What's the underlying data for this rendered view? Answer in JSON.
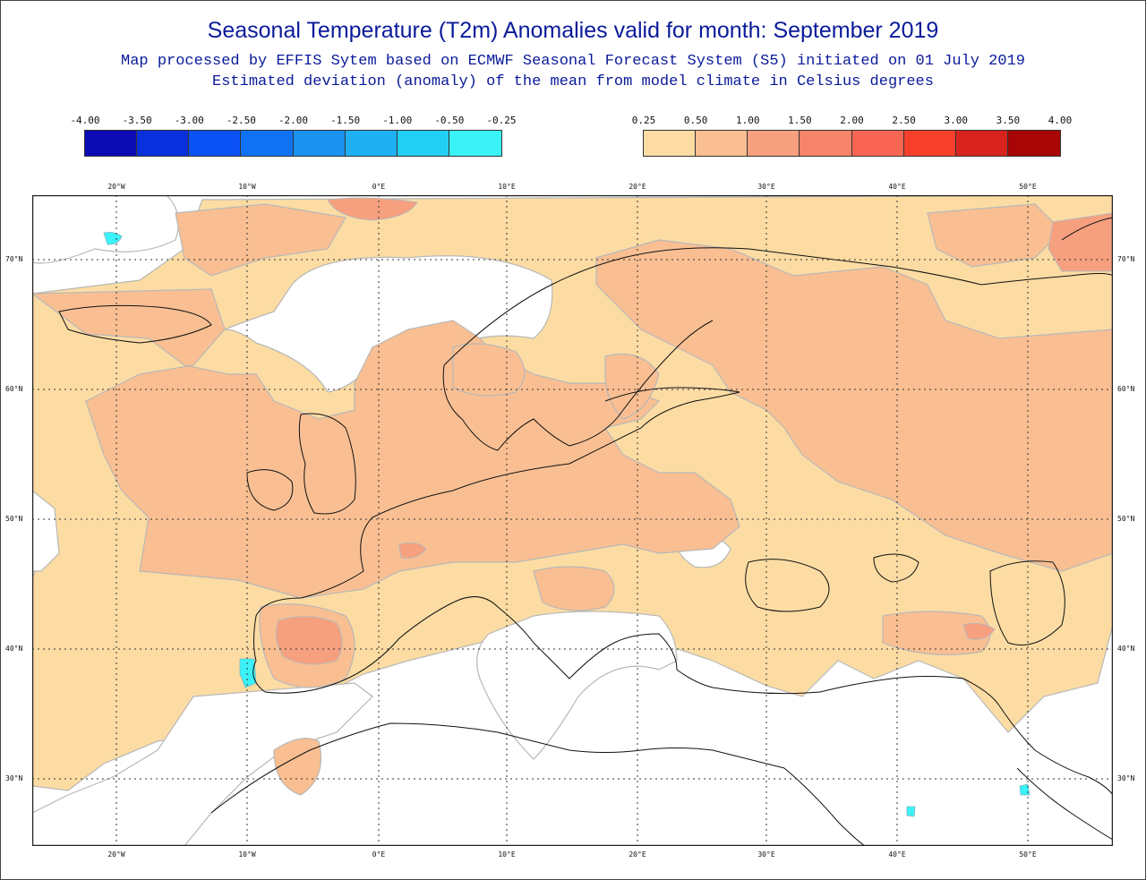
{
  "title": "Seasonal Temperature (T2m) Anomalies valid for month: September 2019",
  "subtitle1": "Map processed by EFFIS Sytem based on ECMWF Seasonal Forecast System (S5) initiated on 01 July 2019",
  "subtitle2": "Estimated deviation (anomaly) of the mean from model climate in Celsius degrees",
  "legend_negative": {
    "labels": [
      "-4.00",
      "-3.50",
      "-3.00",
      "-2.50",
      "-2.00",
      "-1.50",
      "-1.00",
      "-0.50",
      "-0.25"
    ],
    "colors": [
      "#0c0ab3",
      "#0a2fdc",
      "#0a52f5",
      "#0f72f5",
      "#1c92f0",
      "#1eb0f2",
      "#22cff4",
      "#3af2f8"
    ]
  },
  "legend_positive": {
    "labels": [
      "0.25",
      "0.50",
      "1.00",
      "1.50",
      "2.00",
      "2.50",
      "3.00",
      "3.50",
      "4.00"
    ],
    "colors": [
      "#fcdca3",
      "#f9bf92",
      "#f6a07f",
      "#f6846b",
      "#f86552",
      "#f7402c",
      "#d8221e",
      "#a80606"
    ]
  },
  "map": {
    "lon_labels": [
      "20°W",
      "10°W",
      "0°E",
      "10°E",
      "20°E",
      "30°E",
      "40°E",
      "50°E"
    ],
    "lat_labels": [
      "70°N",
      "60°N",
      "50°N",
      "40°N",
      "30°N"
    ],
    "colors": {
      "background": "#ffffff",
      "light_warm": "#fcdca3",
      "medium_warm": "#f9bf92",
      "warm": "#f6a07f",
      "cool_spot": "#3af2f8",
      "coast": "#111111",
      "grid": "#333333"
    }
  }
}
